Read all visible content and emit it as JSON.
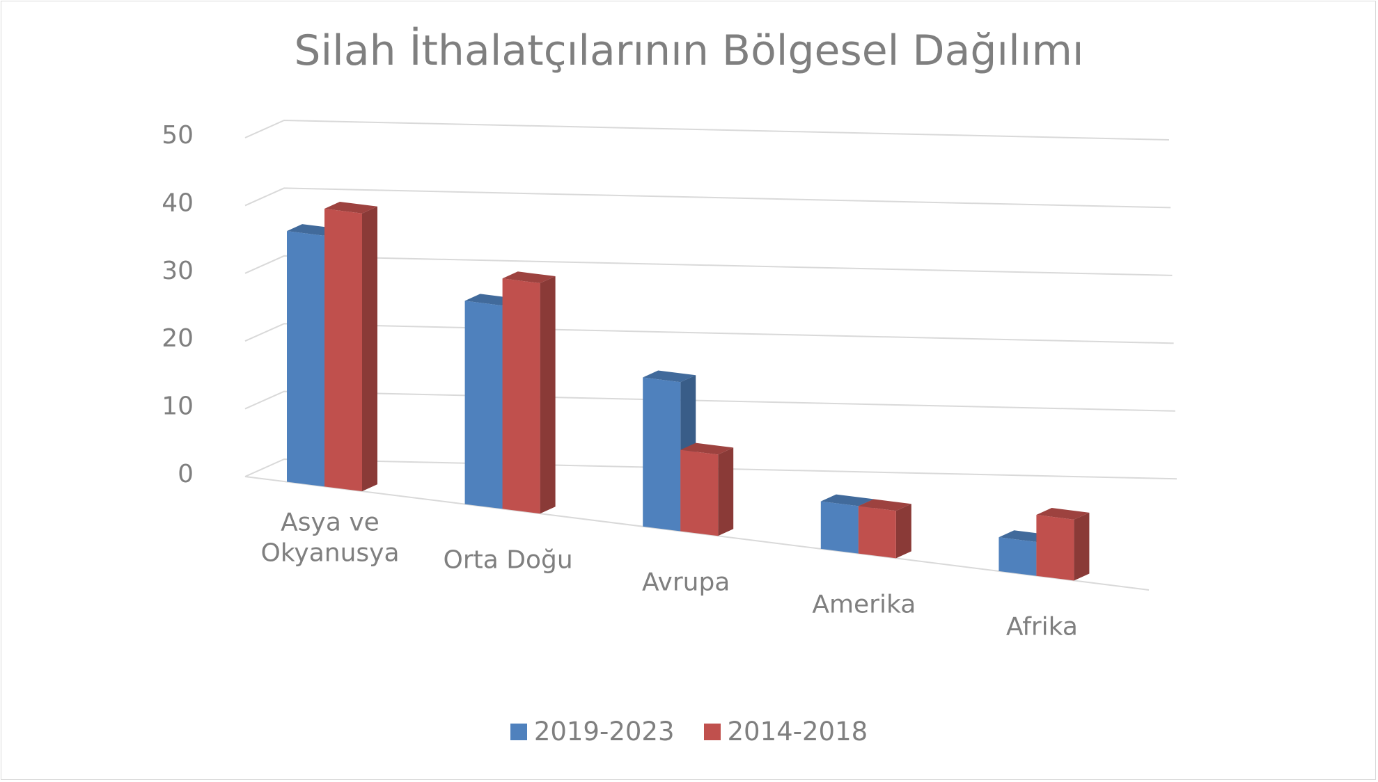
{
  "chart_data": {
    "type": "bar",
    "title": "Silah İthalatçılarının Bölgesel Dağılımı",
    "categories": [
      [
        "Asya ve",
        "Okyanusya"
      ],
      [
        "Orta Doğu"
      ],
      [
        "Avrupa"
      ],
      [
        "Amerika"
      ],
      [
        "Afrika"
      ]
    ],
    "series": [
      {
        "name": "2019-2023",
        "values": [
          37,
          30,
          22,
          7,
          5
        ],
        "color": "#4f81bd"
      },
      {
        "name": "2014-2018",
        "values": [
          41,
          34,
          12,
          7,
          9
        ],
        "color": "#c0504d"
      }
    ],
    "ylim": [
      0,
      50
    ],
    "yticks": [
      "0",
      "10",
      "20",
      "30",
      "40",
      "50"
    ],
    "grid": true,
    "legend_position": "bottom",
    "style": "3d-clustered-column"
  }
}
